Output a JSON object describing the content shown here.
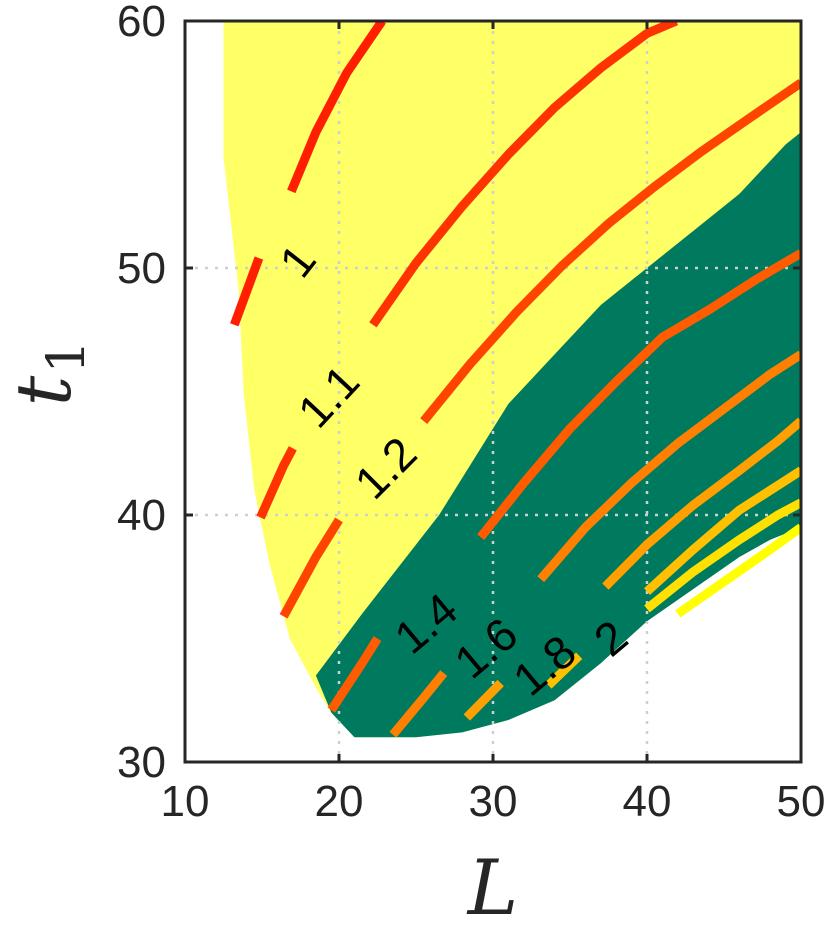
{
  "chart_data": {
    "type": "contour",
    "xlabel": "L",
    "ylabel": "t",
    "ylabel_subscript": "1",
    "xlim": [
      10,
      50
    ],
    "ylim": [
      30,
      60
    ],
    "x_ticks": [
      10,
      20,
      30,
      40,
      50
    ],
    "y_ticks": [
      30,
      40,
      50,
      60
    ],
    "grid": true,
    "colors": {
      "feasible_region": "#ffff66",
      "optimal_region": "#007a5e",
      "axes": "#262626"
    },
    "feasible_region_boundary": [
      [
        12.5,
        60
      ],
      [
        12.5,
        54.5
      ],
      [
        13.5,
        49
      ],
      [
        13.8,
        45
      ],
      [
        14.5,
        41
      ],
      [
        15.5,
        38
      ],
      [
        16.8,
        35
      ],
      [
        18.5,
        33
      ],
      [
        19.5,
        32
      ],
      [
        21,
        31
      ],
      [
        25,
        31
      ],
      [
        28,
        31.2
      ],
      [
        31,
        31.7
      ],
      [
        34,
        32.5
      ],
      [
        37,
        34
      ],
      [
        40,
        35.7
      ],
      [
        43,
        37
      ],
      [
        46,
        38.3
      ],
      [
        48,
        39
      ],
      [
        50,
        39.5
      ],
      [
        50,
        60
      ]
    ],
    "optimal_region_boundary": [
      [
        18.5,
        33.5
      ],
      [
        21.5,
        36
      ],
      [
        24,
        38
      ],
      [
        26.5,
        40
      ],
      [
        28.5,
        42
      ],
      [
        31,
        44.5
      ],
      [
        34,
        46.5
      ],
      [
        37,
        48.5
      ],
      [
        40,
        50
      ],
      [
        43,
        51.5
      ],
      [
        46,
        53
      ],
      [
        49,
        55
      ],
      [
        50,
        55.5
      ],
      [
        50,
        39.5
      ],
      [
        48,
        39
      ],
      [
        46,
        38.3
      ],
      [
        43,
        37
      ],
      [
        40,
        35.7
      ],
      [
        37,
        34
      ],
      [
        34,
        32.5
      ],
      [
        31,
        31.7
      ],
      [
        28,
        31.2
      ],
      [
        25,
        31
      ],
      [
        21,
        31
      ],
      [
        19.5,
        32
      ]
    ],
    "contours": [
      {
        "level": "1",
        "color": "#ff1f00",
        "label_position": [
          17.5,
          50.2
        ],
        "label_angle": -52,
        "segments": [
          [
            [
              13.2,
              47.7
            ],
            [
              14.8,
              50.4
            ]
          ],
          [
            [
              16.9,
              53.1
            ],
            [
              18.5,
              55.5
            ],
            [
              20.5,
              57.9
            ],
            [
              22.8,
              60
            ]
          ]
        ]
      },
      {
        "level": "1.1",
        "color": "#ff3300",
        "label_position": [
          19.5,
          44.7
        ],
        "label_angle": -47,
        "segments": [
          [
            [
              14.9,
              39.9
            ],
            [
              16.4,
              42.0
            ],
            [
              17.0,
              42.7
            ]
          ],
          [
            [
              22.2,
              47.7
            ],
            [
              25,
              50.2
            ],
            [
              28,
              52.5
            ],
            [
              31,
              54.6
            ],
            [
              34,
              56.5
            ],
            [
              37,
              58.1
            ],
            [
              40,
              59.5
            ],
            [
              41.9,
              60
            ]
          ]
        ]
      },
      {
        "level": "1.2",
        "color": "#ff4400",
        "label_position": [
          23.2,
          41.8
        ],
        "label_angle": -45,
        "segments": [
          [
            [
              16.4,
              35.9
            ],
            [
              18.5,
              38.3
            ],
            [
              20,
              39.8
            ]
          ],
          [
            [
              25.5,
              43.8
            ],
            [
              28.5,
              46.1
            ],
            [
              31.5,
              48.2
            ],
            [
              34.5,
              50.1
            ],
            [
              37.5,
              51.8
            ],
            [
              40.5,
              53.3
            ],
            [
              43.5,
              54.7
            ],
            [
              46.5,
              56.0
            ],
            [
              50,
              57.5
            ]
          ]
        ]
      },
      {
        "level": "1.4",
        "color": "#ff5c00",
        "label_position": [
          25.8,
          35.5
        ],
        "label_angle": -40,
        "segments": [
          [
            [
              19.5,
              32.1
            ],
            [
              21.5,
              34.0
            ],
            [
              22.5,
              35.0
            ]
          ],
          [
            [
              29.2,
              39.1
            ],
            [
              32,
              41.3
            ],
            [
              35,
              43.5
            ],
            [
              38,
              45.4
            ],
            [
              41,
              47.2
            ],
            [
              44,
              48.3
            ],
            [
              47,
              49.5
            ],
            [
              50,
              50.6
            ]
          ]
        ]
      },
      {
        "level": "1.6",
        "color": "#ff8000",
        "label_position": [
          29.7,
          34.5
        ],
        "label_angle": -40,
        "segments": [
          [
            [
              23.5,
              31.1
            ],
            [
              25.5,
              32.6
            ],
            [
              26.8,
              33.6
            ]
          ],
          [
            [
              33.1,
              37.4
            ],
            [
              36,
              39.5
            ],
            [
              39,
              41.3
            ],
            [
              42,
              42.9
            ],
            [
              45,
              44.3
            ],
            [
              48,
              45.7
            ],
            [
              50,
              46.5
            ]
          ]
        ]
      },
      {
        "level": "1.8",
        "color": "#ffa000",
        "label_position": [
          33.5,
          33.8
        ],
        "label_angle": -40,
        "segments": [
          [
            [
              28.3,
              31.8
            ],
            [
              30.5,
              33.2
            ]
          ],
          [
            [
              37.3,
              37.1
            ],
            [
              40,
              38.8
            ],
            [
              43,
              40.4
            ],
            [
              46,
              41.8
            ],
            [
              48.5,
              43.0
            ],
            [
              50,
              43.8
            ]
          ]
        ]
      },
      {
        "level": "2",
        "color": "#ffc000",
        "label_position": [
          37.8,
          34.9
        ],
        "label_angle": -40,
        "segments": [
          [
            [
              33.6,
              33.1
            ],
            [
              35.6,
              34.3
            ]
          ],
          [
            [
              40,
              36.9
            ],
            [
              43,
              38.6
            ],
            [
              46,
              40.2
            ],
            [
              48.5,
              41.2
            ],
            [
              50,
              41.8
            ]
          ]
        ]
      },
      {
        "level": "",
        "color": "#ffe000",
        "label_position": null,
        "label_angle": 0,
        "segments": [
          [
            [
              40,
              36.2
            ],
            [
              43,
              37.7
            ],
            [
              46,
              39.0
            ],
            [
              48.5,
              40.0
            ],
            [
              50,
              40.5
            ]
          ]
        ]
      },
      {
        "level": "",
        "color": "#ffff00",
        "label_position": null,
        "label_angle": 0,
        "segments": [
          [
            [
              42,
              36.0
            ],
            [
              45,
              37.3
            ],
            [
              48,
              38.6
            ],
            [
              50,
              39.5
            ]
          ]
        ]
      }
    ]
  }
}
